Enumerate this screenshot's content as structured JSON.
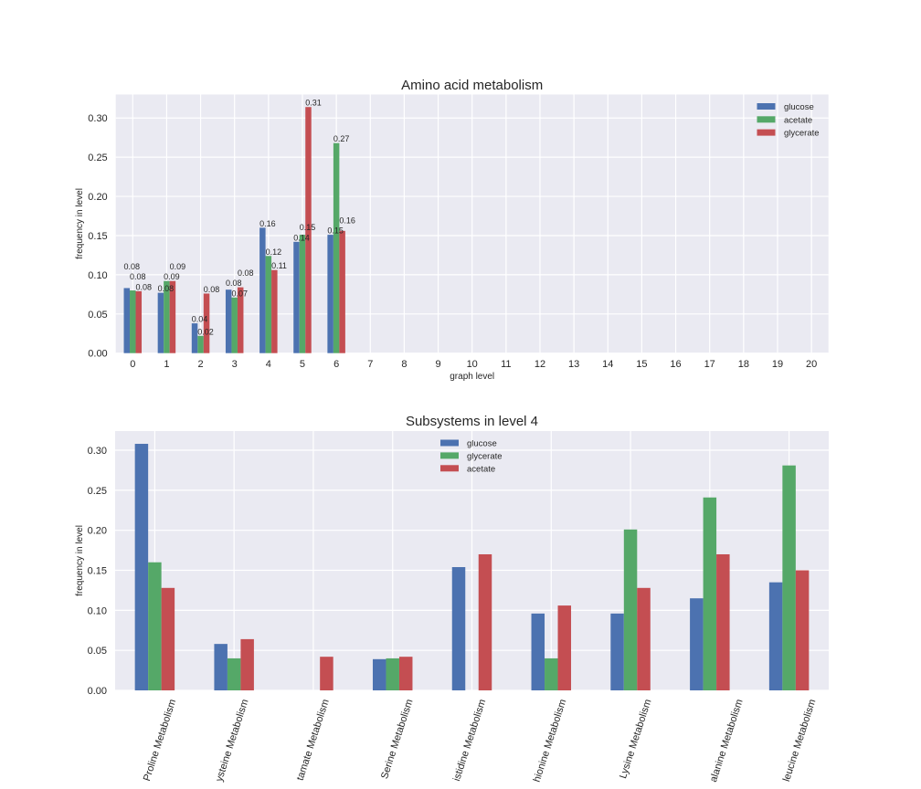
{
  "chart_data": [
    {
      "type": "bar",
      "title": "Amino acid metabolism",
      "xlabel": "graph level",
      "ylabel": "frequency in level",
      "categories": [
        "0",
        "1",
        "2",
        "3",
        "4",
        "5",
        "6",
        "7",
        "8",
        "9",
        "10",
        "11",
        "12",
        "13",
        "14",
        "15",
        "16",
        "17",
        "18",
        "19",
        "20"
      ],
      "yticks": [
        "0.00",
        "0.05",
        "0.10",
        "0.15",
        "0.20",
        "0.25",
        "0.30"
      ],
      "xlim": [
        -0.5,
        20.5
      ],
      "ylim": [
        0,
        0.33
      ],
      "grid": true,
      "legend_position": "top-right",
      "series": [
        {
          "name": "glucose",
          "color": "#4C72B0",
          "values": [
            0.083,
            0.077,
            0.038,
            0.081,
            0.16,
            0.142,
            0.151,
            0,
            0,
            0,
            0,
            0,
            0,
            0,
            0,
            0,
            0,
            0,
            0,
            0,
            0
          ],
          "labels": [
            "0.08",
            "0.08",
            "0.04",
            "0.08",
            "0.16",
            "0.14",
            "0.15",
            null,
            null,
            null,
            null,
            null,
            null,
            null,
            null,
            null,
            null,
            null,
            null,
            null,
            null
          ]
        },
        {
          "name": "acetate",
          "color": "#55A868",
          "values": [
            0.08,
            0.092,
            0.022,
            0.071,
            0.124,
            0.151,
            0.268,
            0,
            0,
            0,
            0,
            0,
            0,
            0,
            0,
            0,
            0,
            0,
            0,
            0,
            0
          ],
          "labels": [
            "0.08",
            "0.09",
            "0.02",
            "0.07",
            "0.12",
            "0.15",
            "0.27",
            null,
            null,
            null,
            null,
            null,
            null,
            null,
            null,
            null,
            null,
            null,
            null,
            null,
            null
          ]
        },
        {
          "name": "glycerate",
          "color": "#C44E52",
          "values": [
            0.079,
            0.092,
            0.076,
            0.084,
            0.106,
            0.314,
            0.156,
            0,
            0,
            0,
            0,
            0,
            0,
            0,
            0,
            0,
            0,
            0,
            0,
            0,
            0
          ],
          "labels": [
            "0.08",
            "0.09",
            "0.08",
            "0.08",
            "0.11",
            "0.31",
            "0.16",
            null,
            null,
            null,
            null,
            null,
            null,
            null,
            null,
            null,
            null,
            null,
            null,
            null,
            null
          ]
        }
      ]
    },
    {
      "type": "bar",
      "title": "Subsystems in level 4",
      "xlabel": "",
      "ylabel": "frequency in level",
      "categories": [
        "Proline Metabolism",
        "ysteine Metabolism",
        "tamate Metabolism",
        "Serine Metabolism",
        "istidine Metabolism",
        "hionine Metabolism",
        "Lysine Metabolism",
        "alanine Metabolism",
        "leucine Metabolism"
      ],
      "yticks": [
        "0.00",
        "0.05",
        "0.10",
        "0.15",
        "0.20",
        "0.25",
        "0.30"
      ],
      "xlim": [
        -0.5,
        8.5
      ],
      "ylim": [
        0,
        0.324
      ],
      "grid": true,
      "legend_position": "top-center",
      "series": [
        {
          "name": "glucose",
          "color": "#4C72B0",
          "values": [
            0.308,
            0.058,
            0,
            0.039,
            0.154,
            0.096,
            0.096,
            0.115,
            0.135
          ]
        },
        {
          "name": "glycerate",
          "color": "#55A868",
          "values": [
            0.16,
            0.04,
            0,
            0.04,
            0,
            0.04,
            0.201,
            0.241,
            0.281
          ]
        },
        {
          "name": "acetate",
          "color": "#C44E52",
          "values": [
            0.128,
            0.064,
            0.042,
            0.042,
            0.17,
            0.106,
            0.128,
            0.17,
            0.15
          ]
        }
      ]
    }
  ]
}
